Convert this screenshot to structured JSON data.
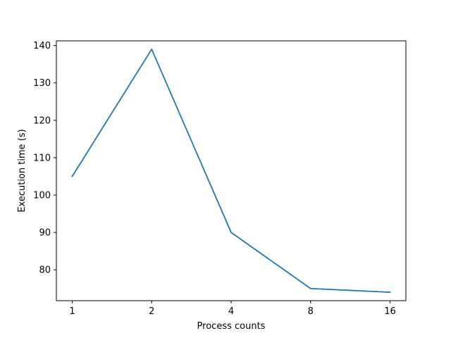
{
  "chart_data": {
    "type": "line",
    "title": "",
    "xlabel": "Process counts",
    "ylabel": "Execution time (s)",
    "categories": [
      "1",
      "2",
      "4",
      "8",
      "16"
    ],
    "series": [
      {
        "values": [
          105,
          139,
          90,
          75,
          74
        ],
        "color": "#1f77b4"
      }
    ],
    "yticks": [
      80,
      90,
      100,
      110,
      120,
      130,
      140
    ],
    "ylim": [
      71.75,
      141.25
    ],
    "grid": false,
    "legend": "none"
  }
}
